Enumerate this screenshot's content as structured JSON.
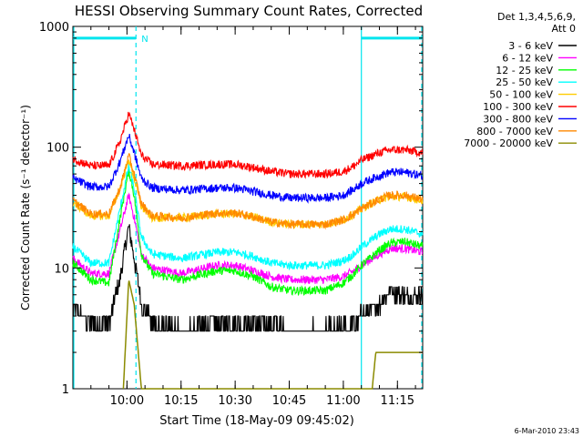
{
  "chart_data": {
    "type": "line",
    "title": "HESSI Observing Summary Count Rates, Corrected",
    "xlabel": "Start Time (18-May-09 09:45:02)",
    "ylabel": "Corrected Count Rate (s⁻¹ detector⁻¹)",
    "y_scale": "log",
    "ylim": [
      1,
      1000
    ],
    "xlim_minutes_after_start": [
      0,
      97
    ],
    "x_tick_labels": [
      {
        "minute": 15,
        "label": "10:00"
      },
      {
        "minute": 30,
        "label": "10:15"
      },
      {
        "minute": 45,
        "label": "10:30"
      },
      {
        "minute": 60,
        "label": "10:45"
      },
      {
        "minute": 75,
        "label": "11:00"
      },
      {
        "minute": 90,
        "label": "11:15"
      }
    ],
    "y_tick_labels": [
      {
        "value": 1,
        "label": "1"
      },
      {
        "value": 10,
        "label": "10"
      },
      {
        "value": 100,
        "label": "100"
      },
      {
        "value": 1000,
        "label": "1000"
      }
    ],
    "legend_header": [
      "Det 1,3,4,5,6,9,",
      "Att 0"
    ],
    "legend_position": "right, outside plot",
    "grid": false,
    "flag_markers": {
      "color": "#00e5ee",
      "solid_vertical_lines_minute": [
        0,
        80
      ],
      "dashed_vertical_lines_minute": [
        17.5,
        97
      ],
      "bars": [
        {
          "start_minute": 0,
          "end_minute": 17.5,
          "y": 800
        },
        {
          "start_minute": 80,
          "end_minute": 97,
          "y": 800
        }
      ],
      "label": {
        "text": "N",
        "minute": 19
      }
    },
    "series": [
      {
        "name": "3 - 6 keV",
        "color": "#000000",
        "points": [
          [
            0,
            4.5
          ],
          [
            5,
            3.5
          ],
          [
            10,
            3.5
          ],
          [
            13,
            8
          ],
          [
            15.5,
            22
          ],
          [
            17,
            12
          ],
          [
            19,
            5
          ],
          [
            22,
            3.5
          ],
          [
            30,
            3
          ],
          [
            40,
            3.5
          ],
          [
            50,
            3.5
          ],
          [
            55,
            3.5
          ],
          [
            60,
            3
          ],
          [
            70,
            3
          ],
          [
            75,
            3.2
          ],
          [
            78,
            3.5
          ],
          [
            80,
            4
          ],
          [
            85,
            5
          ],
          [
            88,
            6.5
          ],
          [
            92,
            6
          ],
          [
            97,
            6
          ]
        ]
      },
      {
        "name": "6 - 12 keV",
        "color": "#ff00ff",
        "points": [
          [
            0,
            12
          ],
          [
            5,
            9
          ],
          [
            10,
            9
          ],
          [
            13,
            20
          ],
          [
            15.5,
            40
          ],
          [
            17,
            26
          ],
          [
            19,
            13
          ],
          [
            22,
            10
          ],
          [
            30,
            9
          ],
          [
            40,
            10.5
          ],
          [
            45,
            10.5
          ],
          [
            50,
            9.5
          ],
          [
            55,
            8.5
          ],
          [
            60,
            8
          ],
          [
            70,
            8
          ],
          [
            75,
            8.5
          ],
          [
            78,
            9.5
          ],
          [
            80,
            10.5
          ],
          [
            85,
            13
          ],
          [
            88,
            14.5
          ],
          [
            92,
            14.5
          ],
          [
            97,
            13.5
          ]
        ]
      },
      {
        "name": "12 - 25 keV",
        "color": "#00ff00",
        "points": [
          [
            0,
            11
          ],
          [
            5,
            8
          ],
          [
            10,
            7.5
          ],
          [
            13,
            25
          ],
          [
            15.5,
            65
          ],
          [
            17,
            40
          ],
          [
            19,
            13
          ],
          [
            22,
            9
          ],
          [
            30,
            8
          ],
          [
            40,
            9.5
          ],
          [
            45,
            9.5
          ],
          [
            50,
            8.5
          ],
          [
            55,
            7
          ],
          [
            60,
            6.5
          ],
          [
            70,
            6.5
          ],
          [
            75,
            7.5
          ],
          [
            78,
            9
          ],
          [
            80,
            10.5
          ],
          [
            85,
            14
          ],
          [
            88,
            16
          ],
          [
            92,
            16.5
          ],
          [
            97,
            15
          ]
        ]
      },
      {
        "name": "25 - 50 keV",
        "color": "#00ffff",
        "points": [
          [
            0,
            15
          ],
          [
            5,
            11
          ],
          [
            10,
            11
          ],
          [
            13,
            30
          ],
          [
            15.5,
            70
          ],
          [
            17,
            45
          ],
          [
            19,
            18
          ],
          [
            22,
            13
          ],
          [
            30,
            12
          ],
          [
            40,
            13.5
          ],
          [
            45,
            13.5
          ],
          [
            50,
            12.5
          ],
          [
            55,
            11
          ],
          [
            60,
            10.5
          ],
          [
            70,
            10.5
          ],
          [
            75,
            11.5
          ],
          [
            78,
            13
          ],
          [
            80,
            15
          ],
          [
            85,
            19
          ],
          [
            88,
            21
          ],
          [
            92,
            21
          ],
          [
            97,
            19
          ]
        ]
      },
      {
        "name": "50 - 100 keV",
        "color": "#ffcc00",
        "points": [
          [
            0,
            35
          ],
          [
            5,
            27
          ],
          [
            10,
            27
          ],
          [
            13,
            45
          ],
          [
            15.5,
            80
          ],
          [
            17,
            55
          ],
          [
            19,
            32
          ],
          [
            22,
            26
          ],
          [
            30,
            26
          ],
          [
            40,
            28
          ],
          [
            45,
            28
          ],
          [
            50,
            26.5
          ],
          [
            55,
            24
          ],
          [
            60,
            23
          ],
          [
            70,
            23
          ],
          [
            75,
            25
          ],
          [
            78,
            28
          ],
          [
            80,
            31
          ],
          [
            85,
            37
          ],
          [
            88,
            39
          ],
          [
            92,
            39
          ],
          [
            97,
            36
          ]
        ]
      },
      {
        "name": "100 - 300 keV",
        "color": "#ff0000",
        "points": [
          [
            0,
            80
          ],
          [
            5,
            70
          ],
          [
            10,
            70
          ],
          [
            13,
            110
          ],
          [
            15.5,
            190
          ],
          [
            17,
            140
          ],
          [
            19,
            85
          ],
          [
            22,
            72
          ],
          [
            30,
            70
          ],
          [
            40,
            72
          ],
          [
            45,
            72
          ],
          [
            50,
            68
          ],
          [
            55,
            63
          ],
          [
            60,
            60
          ],
          [
            70,
            60
          ],
          [
            75,
            63
          ],
          [
            78,
            70
          ],
          [
            80,
            78
          ],
          [
            85,
            90
          ],
          [
            88,
            95
          ],
          [
            92,
            95
          ],
          [
            97,
            90
          ]
        ]
      },
      {
        "name": "300 - 800 keV",
        "color": "#0000ff",
        "points": [
          [
            0,
            55
          ],
          [
            5,
            47
          ],
          [
            10,
            47
          ],
          [
            13,
            75
          ],
          [
            15.5,
            125
          ],
          [
            17,
            90
          ],
          [
            19,
            55
          ],
          [
            22,
            46
          ],
          [
            30,
            44
          ],
          [
            40,
            46
          ],
          [
            45,
            46
          ],
          [
            50,
            43
          ],
          [
            55,
            40
          ],
          [
            60,
            38
          ],
          [
            70,
            38
          ],
          [
            75,
            40
          ],
          [
            78,
            45
          ],
          [
            80,
            50
          ],
          [
            85,
            58
          ],
          [
            88,
            62
          ],
          [
            92,
            62
          ],
          [
            97,
            58
          ]
        ]
      },
      {
        "name": "800 - 7000 keV",
        "color": "#ff8800",
        "points": [
          [
            0,
            36
          ],
          [
            5,
            28
          ],
          [
            10,
            28
          ],
          [
            13,
            45
          ],
          [
            15.5,
            85
          ],
          [
            17,
            60
          ],
          [
            19,
            34
          ],
          [
            22,
            27
          ],
          [
            30,
            26
          ],
          [
            40,
            28.5
          ],
          [
            45,
            28.5
          ],
          [
            50,
            26.5
          ],
          [
            55,
            24
          ],
          [
            60,
            23
          ],
          [
            70,
            23
          ],
          [
            75,
            25
          ],
          [
            78,
            28
          ],
          [
            80,
            31
          ],
          [
            85,
            37
          ],
          [
            88,
            40
          ],
          [
            92,
            40
          ],
          [
            97,
            37
          ]
        ]
      },
      {
        "name": "7000 - 20000 keV",
        "color": "#8b8b00",
        "points": [
          [
            14,
            1
          ],
          [
            15.5,
            8
          ],
          [
            17,
            5
          ],
          [
            19,
            1
          ],
          [
            83,
            1
          ],
          [
            84,
            2
          ],
          [
            97,
            2
          ]
        ]
      }
    ]
  },
  "footer": {
    "timestamp": "6-Mar-2010 23:43"
  }
}
